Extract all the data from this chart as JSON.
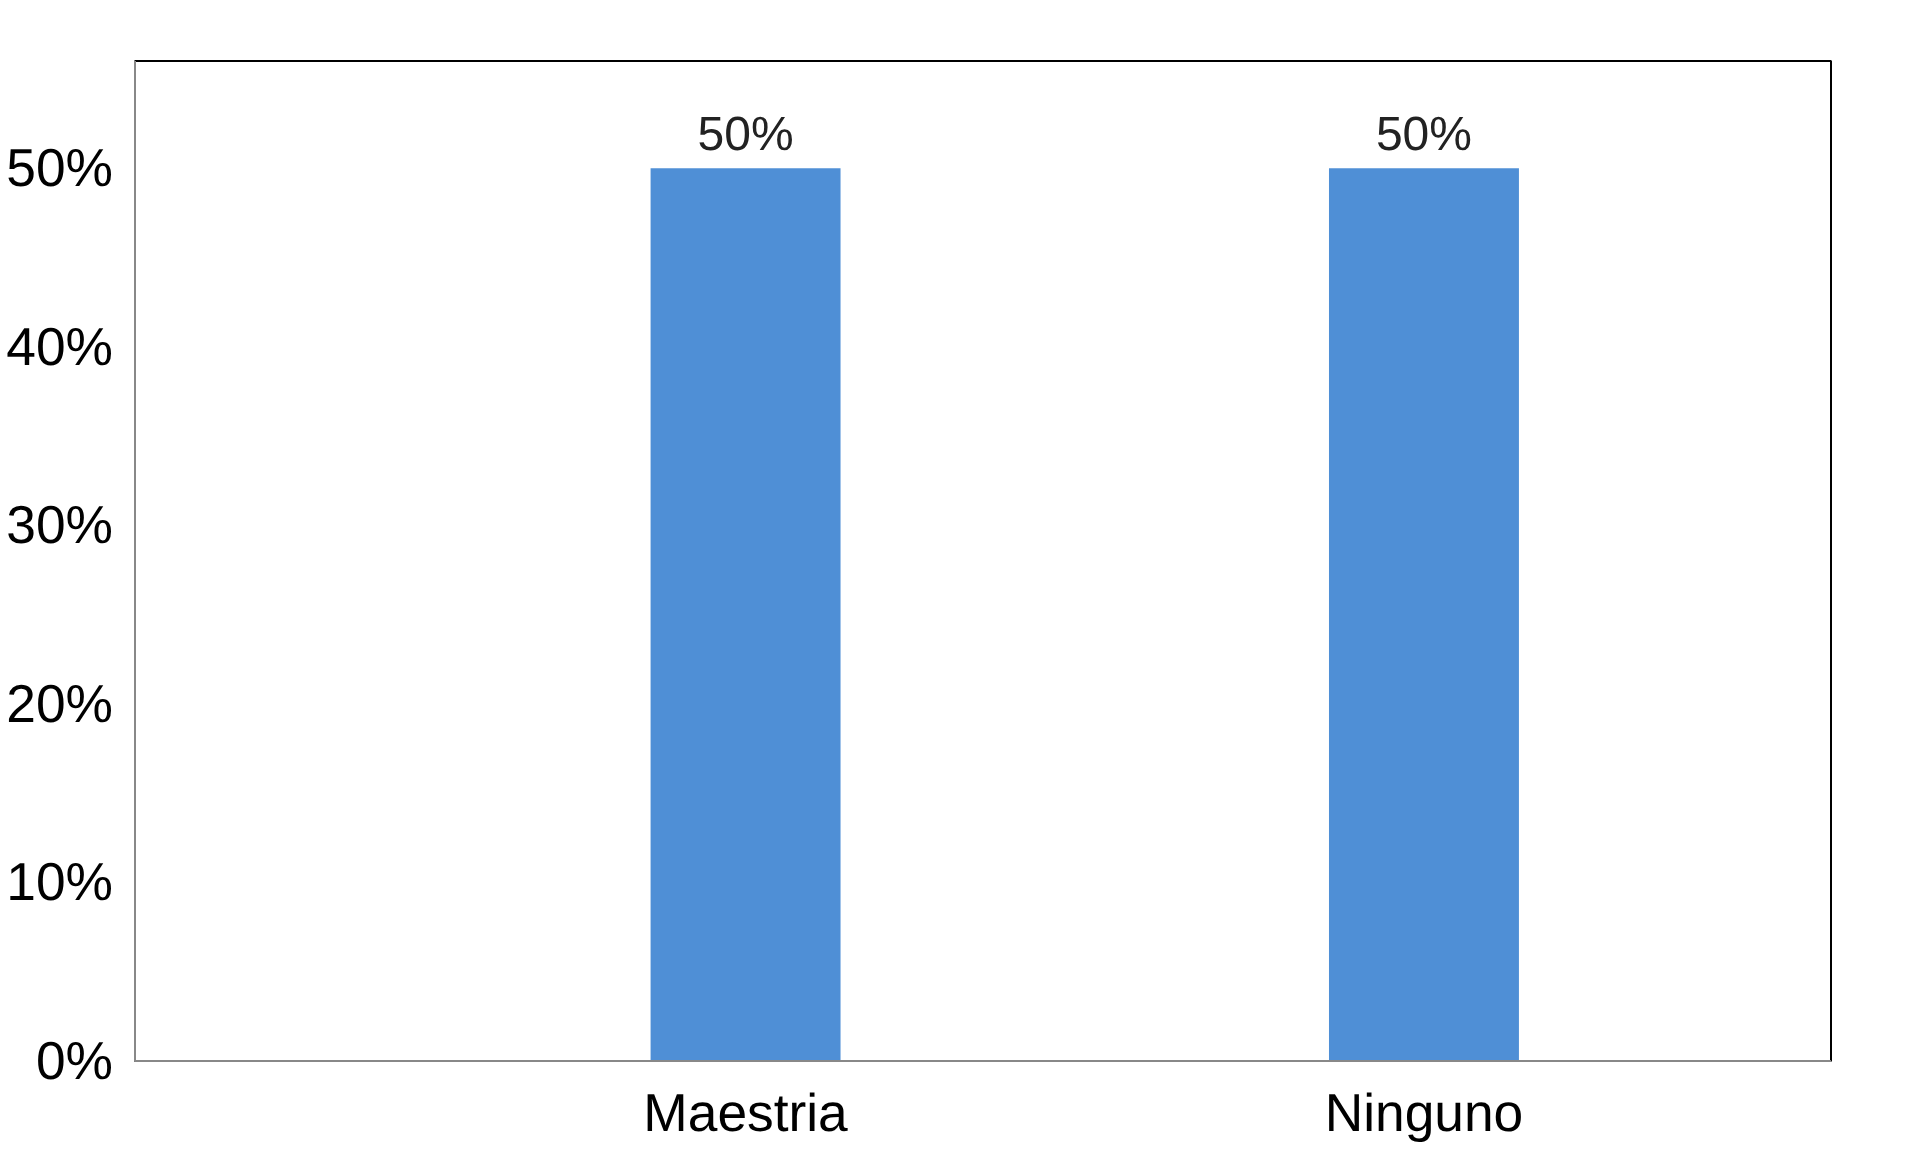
{
  "chart_data": {
    "type": "bar",
    "categories": [
      "Maestria",
      "Ninguno"
    ],
    "values": [
      50,
      50
    ],
    "color": "#4f8fd6",
    "value_labels": [
      "50%",
      "50%"
    ],
    "ylim": [
      0,
      56
    ],
    "yticks": [
      {
        "value": 0,
        "label": "0%"
      },
      {
        "value": 10,
        "label": "10%"
      },
      {
        "value": 20,
        "label": "20%"
      },
      {
        "value": 30,
        "label": "30%"
      },
      {
        "value": 40,
        "label": "40%"
      },
      {
        "value": 50,
        "label": "50%"
      }
    ],
    "grid": false
  }
}
